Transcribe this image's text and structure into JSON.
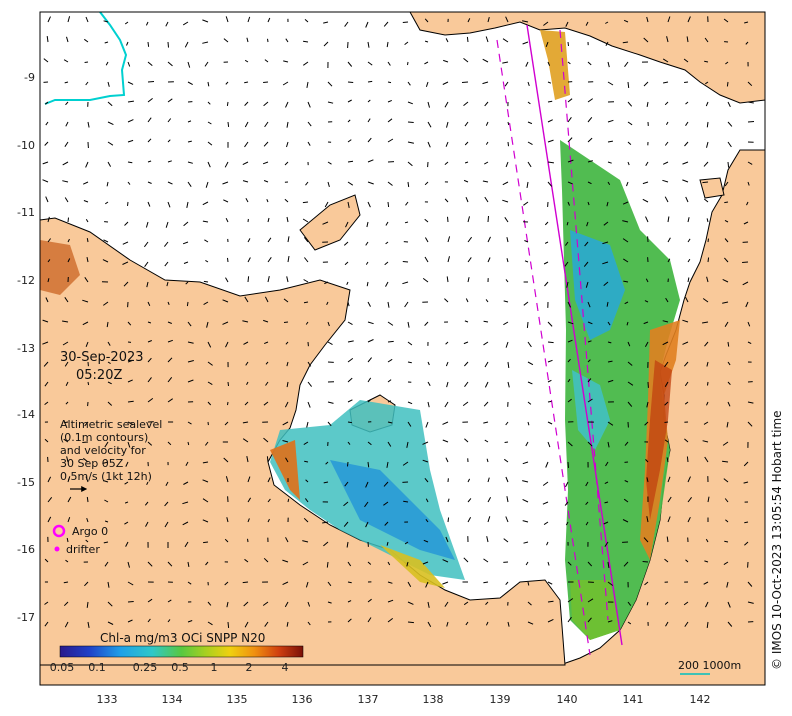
{
  "map": {
    "date": "30-Sep-2023",
    "time": "05:20Z",
    "altimetry_lines": [
      "Altimetric sealevel",
      "(0.1m contours)",
      "and velocity for",
      "30 Sep 05Z",
      "0.5m/s (1kt 12h)"
    ],
    "legend": {
      "argo_label": "Argo 0",
      "drifter_label": "drifter",
      "argo_color": "#ff00ff",
      "drifter_color": "#ff00ff"
    },
    "colorbar": {
      "title": "Chl-a mg/m3 OCi SNPP N20",
      "ticks": [
        "0.05",
        "0.1",
        "0.25",
        "0.5",
        "1",
        "2",
        "4"
      ]
    },
    "scale_label": "200  1000m",
    "credit": "© IMOS 10-Oct-2023 13:05:54 Hobart time",
    "lon_ticks": [
      "133",
      "134",
      "135",
      "136",
      "137",
      "138",
      "139",
      "140",
      "141",
      "142"
    ],
    "lat_ticks": [
      "-9",
      "-10",
      "-11",
      "-12",
      "-13",
      "-14",
      "-15",
      "-16",
      "-17"
    ],
    "colors": {
      "land": "#f9c99a",
      "sea": "#ffffff",
      "track": "#d000d0",
      "drifter_track": "#00d0d0"
    }
  }
}
